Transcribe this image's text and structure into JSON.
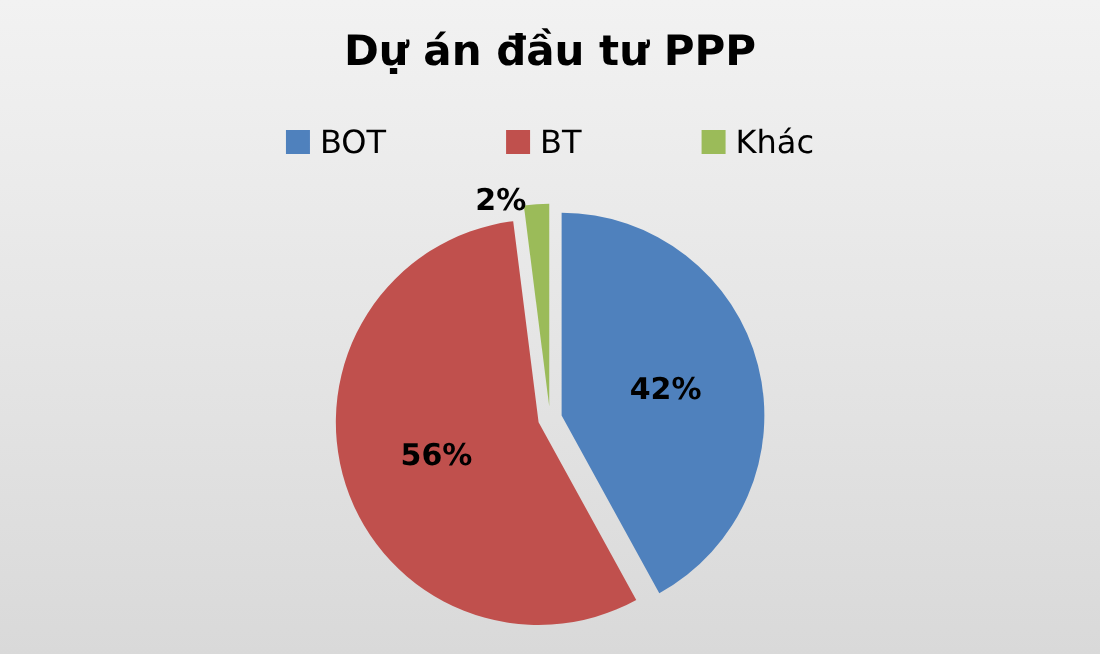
{
  "chart_data": {
    "type": "pie",
    "title": "Dự án đầu tư PPP",
    "categories": [
      "BOT",
      "BT",
      "Khác"
    ],
    "values": [
      42,
      56,
      2
    ],
    "colors": [
      "#4f81bd",
      "#c0504d",
      "#9bbb59"
    ],
    "value_labels": [
      "42%",
      "56%",
      "2%"
    ],
    "legend": "top"
  }
}
